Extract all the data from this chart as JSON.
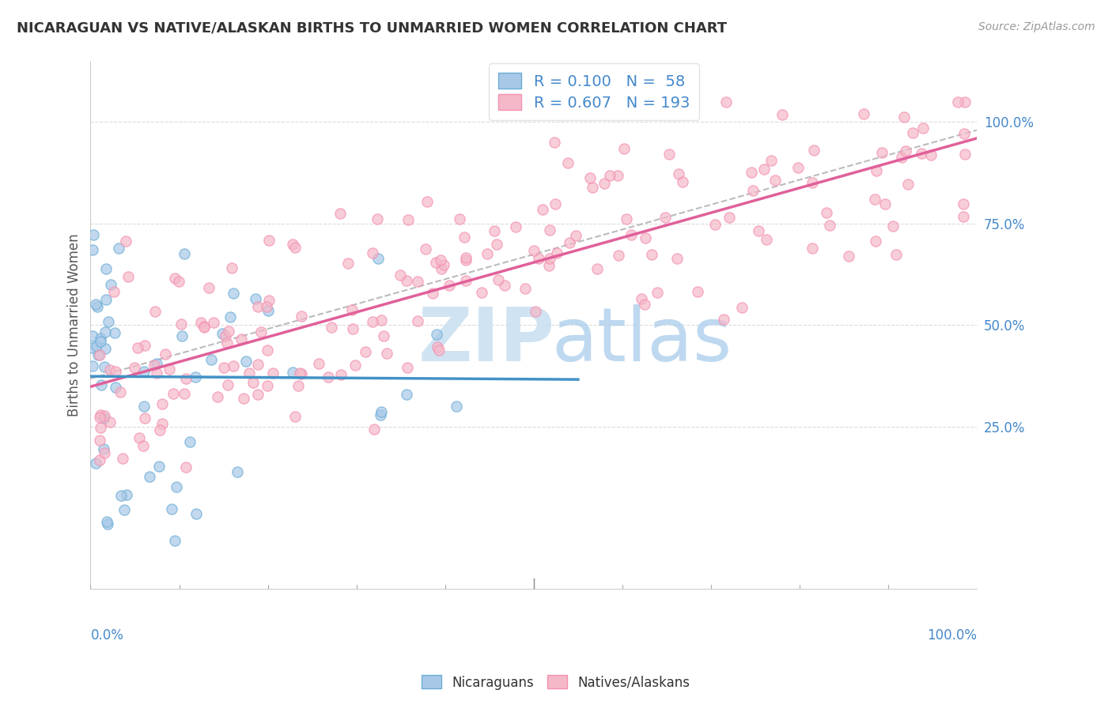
{
  "title": "NICARAGUAN VS NATIVE/ALASKAN BIRTHS TO UNMARRIED WOMEN CORRELATION CHART",
  "source": "Source: ZipAtlas.com",
  "ylabel": "Births to Unmarried Women",
  "right_ytick_labels": [
    "",
    "25.0%",
    "50.0%",
    "75.0%",
    "100.0%"
  ],
  "right_ytick_vals": [
    0.0,
    25.0,
    50.0,
    75.0,
    100.0
  ],
  "legend_blue_r": "R = 0.100",
  "legend_blue_n": "N =  58",
  "legend_pink_r": "R = 0.607",
  "legend_pink_n": "N = 193",
  "blue_color": "#a8c8e8",
  "pink_color": "#f4b8c8",
  "blue_edge_color": "#6baed6",
  "pink_edge_color": "#f490b0",
  "blue_line_color": "#4292c6",
  "pink_line_color": "#e0609a",
  "dashed_line_color": "#b0b0b0",
  "background_color": "#ffffff",
  "title_color": "#333333",
  "axis_label_color": "#4488cc",
  "grid_color": "#cccccc",
  "xmin": 0.0,
  "xmax": 100.0,
  "ymin": -15.0,
  "ymax": 115.0,
  "watermark_zip_color": "#c8dff0",
  "watermark_atlas_color": "#a8ccec"
}
